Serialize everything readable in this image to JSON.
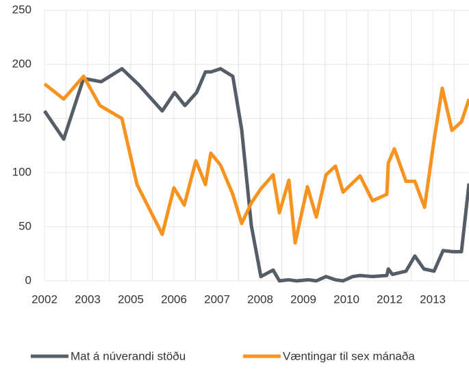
{
  "chart_data": {
    "type": "line",
    "series": [
      {
        "name": "Mat á núverandi stöðu",
        "color": "#555d66",
        "x": [
          0,
          0.89,
          1.81,
          2.63,
          3.59,
          4.38,
          5.46,
          6.03,
          6.51,
          7.05,
          7.46,
          7.71,
          8.16,
          8.73,
          9.14,
          9.59,
          10.03,
          10.6,
          10.89,
          11.33,
          11.68,
          12.25,
          12.6,
          13.05,
          13.49,
          13.84,
          14.29,
          14.63,
          15.21,
          15.87,
          15.94,
          16.13,
          16.76,
          17.17,
          17.59,
          18.06,
          18.48,
          18.92,
          19.33,
          19.68
        ],
        "values": [
          157,
          131,
          187,
          184,
          196,
          181,
          157,
          174,
          162,
          174,
          193,
          193,
          196,
          189,
          140,
          51,
          4,
          10,
          0,
          1,
          0,
          1,
          0,
          4,
          1,
          0,
          4,
          5,
          4,
          5,
          11,
          6,
          9,
          23,
          11,
          9,
          28,
          27,
          27,
          90
        ]
      },
      {
        "name": "Væntingar til sex mánaða",
        "color": "#f7931e",
        "x": [
          0,
          0.89,
          1.81,
          2.57,
          3.59,
          4.29,
          5.46,
          6,
          6.48,
          7.02,
          7.46,
          7.71,
          8.16,
          8.73,
          9.14,
          9.59,
          10.03,
          10.6,
          10.89,
          11.33,
          11.62,
          12.19,
          12.6,
          13.05,
          13.49,
          13.84,
          14.63,
          15.21,
          15.87,
          15.94,
          16.22,
          16.76,
          17.17,
          17.62,
          18.06,
          18.44,
          18.89,
          19.33,
          19.68
        ],
        "values": [
          182,
          168,
          189,
          162,
          150,
          89,
          43,
          86,
          70,
          111,
          89,
          118,
          107,
          80,
          53,
          72,
          85,
          98,
          63,
          93,
          35,
          87,
          59,
          98,
          106,
          82,
          97,
          74,
          80,
          109,
          122,
          92,
          92,
          68,
          130,
          178,
          139,
          147,
          168
        ]
      }
    ],
    "xlim": [
      0,
      19.68
    ],
    "xticks": [
      {
        "value": 0,
        "label": "2002"
      },
      {
        "value": 2,
        "label": "2003"
      },
      {
        "value": 4,
        "label": "2005"
      },
      {
        "value": 6,
        "label": "2006"
      },
      {
        "value": 8,
        "label": "2007"
      },
      {
        "value": 10,
        "label": "2008"
      },
      {
        "value": 12,
        "label": "2009"
      },
      {
        "value": 14,
        "label": "2010"
      },
      {
        "value": 16,
        "label": "2012"
      },
      {
        "value": 18,
        "label": "2013"
      }
    ],
    "xminorticks": [
      1,
      3,
      5,
      7,
      9,
      11,
      13,
      15,
      17,
      19
    ],
    "ylim": [
      0,
      250
    ],
    "yticks": [
      0,
      50,
      100,
      150,
      200,
      250
    ],
    "grid": true
  }
}
